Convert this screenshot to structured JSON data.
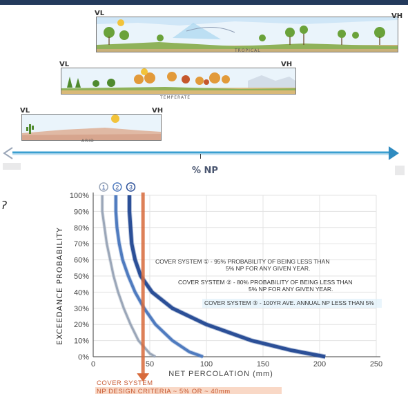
{
  "scenes": [
    {
      "name": "tropical",
      "vl": "VL",
      "vh": "VH",
      "caption": "TROPICAL"
    },
    {
      "name": "temperate",
      "vl": "VL",
      "vh": "VH",
      "caption": "TEMPERATE"
    },
    {
      "name": "arid",
      "vl": "VL",
      "vh": "VH",
      "caption": "ARID"
    }
  ],
  "scale": {
    "tick": "I",
    "label": "% NP"
  },
  "colors": {
    "arrow": "#3a9fd0",
    "np_line": "#d86b3c",
    "curve1": "#9aa6b8",
    "curve2": "#4f7bbf",
    "curve3": "#2b4f97"
  },
  "chart_data": {
    "type": "line",
    "xlabel": "NET PERCOLATION (mm)",
    "ylabel": "EXCEEDANCE PROBABILITY",
    "xlim": [
      0,
      250
    ],
    "ylim": [
      0,
      100
    ],
    "xticks": [
      "0",
      "50",
      "100",
      "150",
      "200",
      "250"
    ],
    "yticks": [
      "0%",
      "10%",
      "20%",
      "30%",
      "40%",
      "50%",
      "60%",
      "70%",
      "80%",
      "90%",
      "100%"
    ],
    "series": [
      {
        "name": "1",
        "values": [
          [
            8,
            100
          ],
          [
            8,
            90
          ],
          [
            10,
            80
          ],
          [
            12,
            70
          ],
          [
            15,
            60
          ],
          [
            18,
            50
          ],
          [
            22,
            40
          ],
          [
            27,
            30
          ],
          [
            33,
            20
          ],
          [
            40,
            10
          ],
          [
            50,
            2
          ],
          [
            55,
            0
          ]
        ]
      },
      {
        "name": "2",
        "values": [
          [
            20,
            100
          ],
          [
            20,
            90
          ],
          [
            21,
            80
          ],
          [
            23,
            70
          ],
          [
            26,
            60
          ],
          [
            31,
            50
          ],
          [
            37,
            40
          ],
          [
            45,
            30
          ],
          [
            55,
            20
          ],
          [
            70,
            10
          ],
          [
            85,
            3
          ],
          [
            97,
            0
          ]
        ]
      },
      {
        "name": "3",
        "values": [
          [
            32,
            100
          ],
          [
            32,
            90
          ],
          [
            33,
            80
          ],
          [
            34,
            70
          ],
          [
            37,
            60
          ],
          [
            42,
            50
          ],
          [
            52,
            40
          ],
          [
            70,
            30
          ],
          [
            100,
            20
          ],
          [
            140,
            10
          ],
          [
            175,
            4
          ],
          [
            205,
            0
          ]
        ]
      }
    ],
    "np_design_x": 44,
    "annotations": [
      "COVER SYSTEM ① - 95% PROBABILITY OF BEING LESS THAN 5% NP FOR ANY GIVEN YEAR.",
      "COVER SYSTEM ② - 80% PROBABILITY OF BEING LESS THAN 5% NP FOR ANY GIVEN YEAR.",
      "COVER SYSTEM ③ - 100YR AVE. ANNUAL NP LESS THAN 5%"
    ],
    "criteria": [
      "COVER SYSTEM",
      "NP DESIGN CRITERIA ~ 5% OR ~ 40mm"
    ]
  }
}
